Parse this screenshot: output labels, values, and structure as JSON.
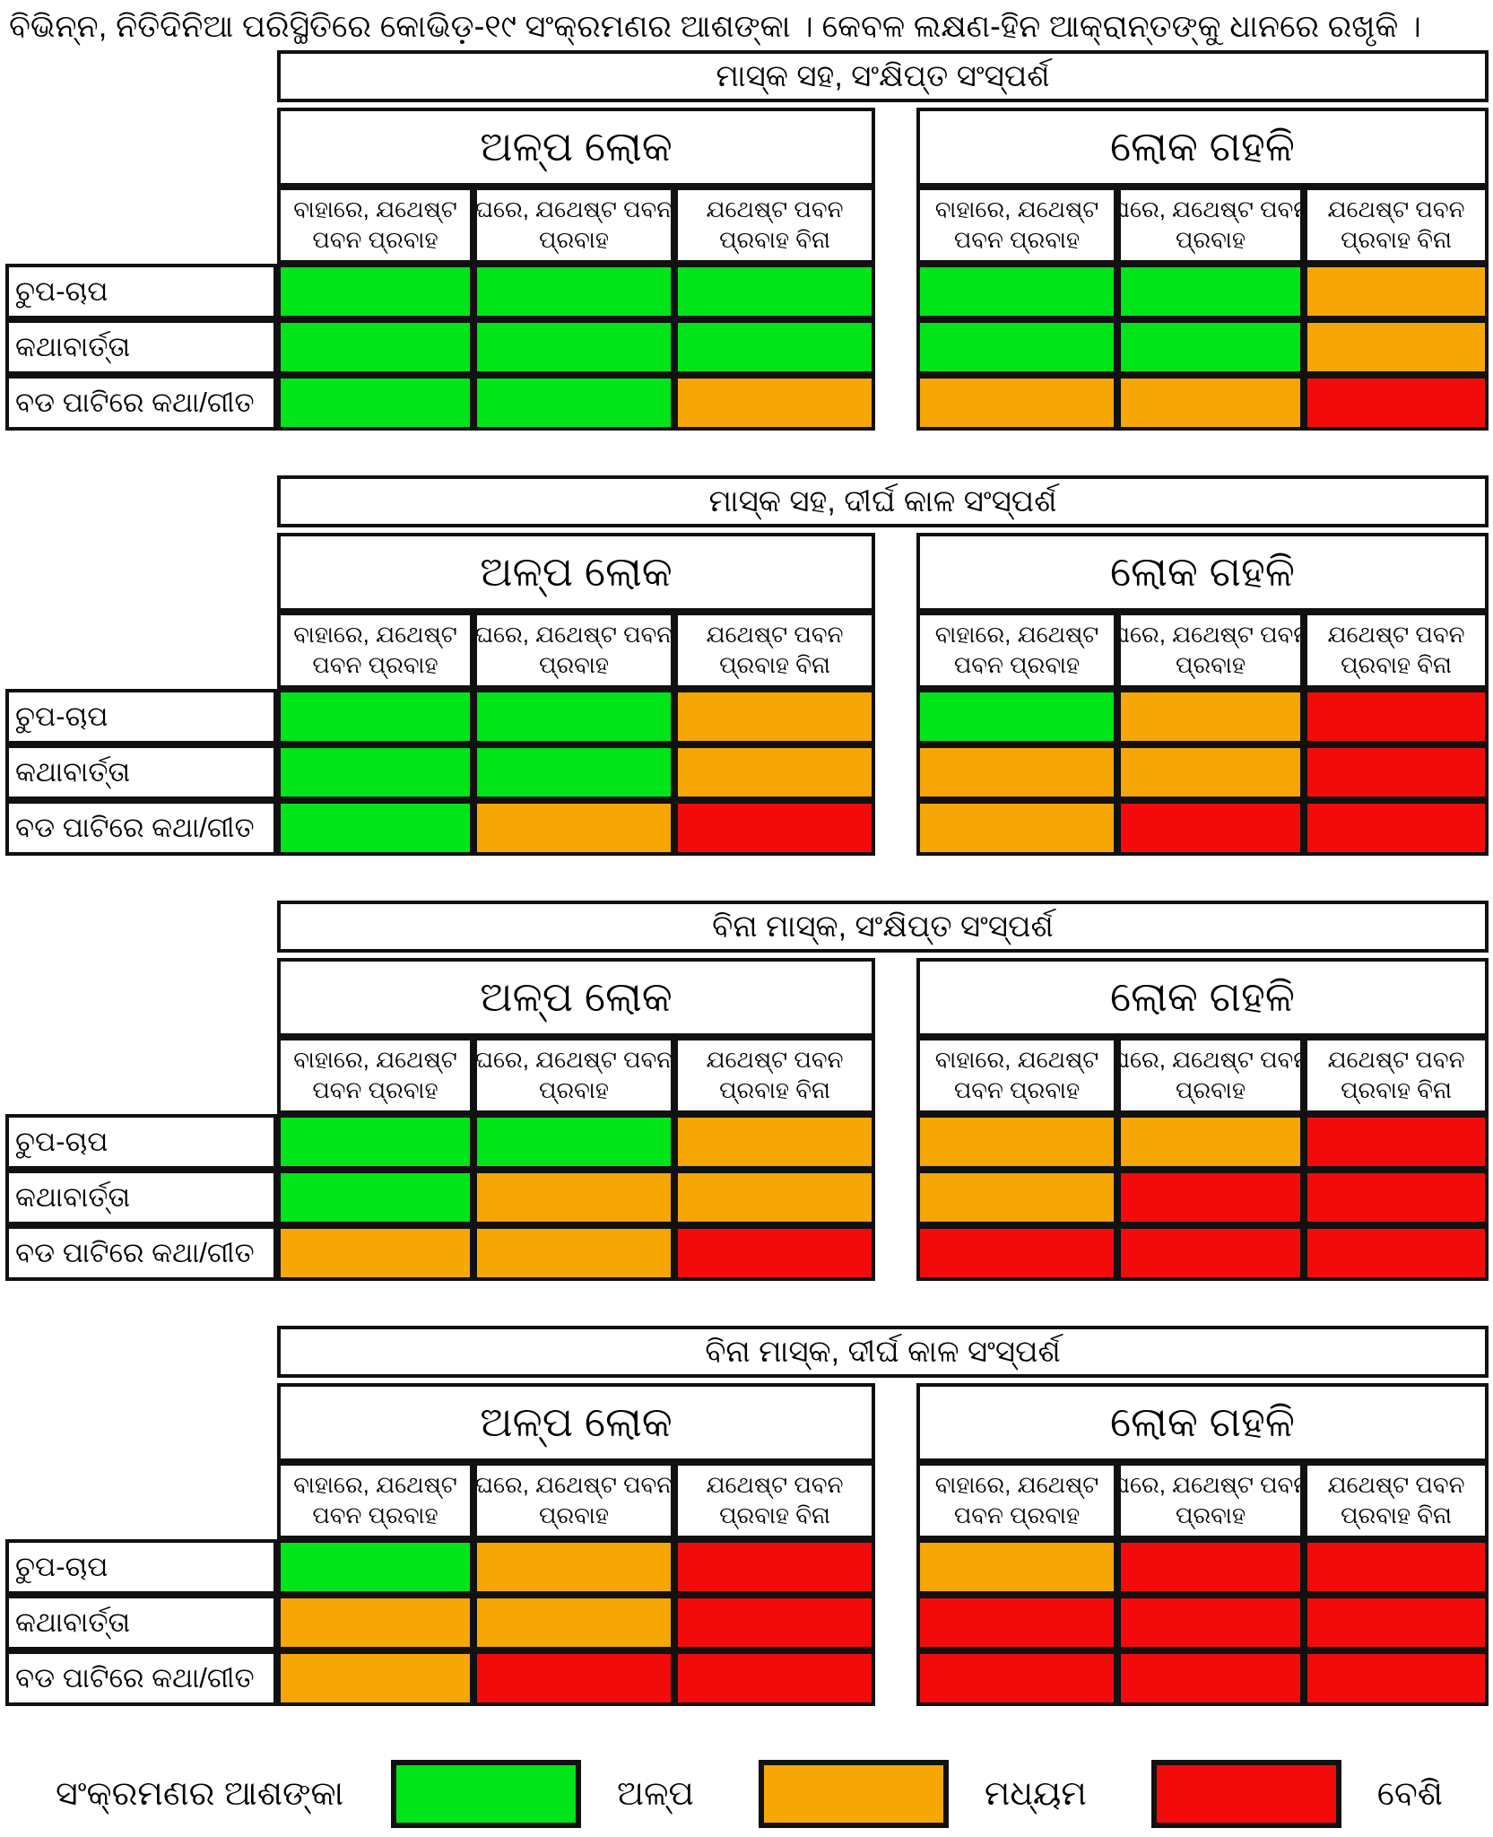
{
  "chart_data": {
    "type": "heatmap",
    "title": "ବିଭିନ୍ନ, ନିତିଦିନିଆ ପରିସ୍ଥିତିରେ କୋଭିଡ଼-୧୯ ସଂକ୍ରମଣର ଆଶଙ୍କା । କେବଳ ଲକ୍ଷଣ-ହିନ ଆକ୍ରାନ୍ତଙ୍କୁ ଧାନରେ ରଖୃକି ।",
    "colors": {
      "low": "#00e41a",
      "medium": "#f6a706",
      "high": "#f30b0b"
    },
    "group_columns": [
      "ଅଳ୍ପ ଲୋକ",
      "ଲୋକ ଗହଳି"
    ],
    "sub_columns": [
      [
        "ବାହାରେ, ଯଥେଷ୍ଟ",
        "ପବନ ପ୍ରବାହ"
      ],
      [
        "ଘରେ, ଯଥେଷ୍ଟ ପବନ",
        "ପ୍ରବାହ"
      ],
      [
        "ଯଥେଷ୍ଟ ପବନ",
        "ପ୍ରବାହ ବିନା"
      ]
    ],
    "row_labels": [
      "ଚୁପ-ଚାପ",
      "କଥାବାର୍ତ୍ତା",
      "ବଡ ପାଟିରେ କଥା/ଗୀତ"
    ],
    "panels": [
      {
        "title": "ମାସ୍କ ସହ, ସଂକ୍ଷିପ୍ତ ସଂସ୍ପର୍ଶ",
        "cells": [
          [
            "low",
            "low",
            "low",
            "low",
            "low",
            "medium"
          ],
          [
            "low",
            "low",
            "low",
            "low",
            "low",
            "medium"
          ],
          [
            "low",
            "low",
            "medium",
            "medium",
            "medium",
            "high"
          ]
        ]
      },
      {
        "title": "ମାସ୍କ ସହ, ଦୀର୍ଘ କାଳ ସଂସ୍ପର୍ଶ",
        "cells": [
          [
            "low",
            "low",
            "medium",
            "low",
            "medium",
            "high"
          ],
          [
            "low",
            "low",
            "medium",
            "medium",
            "medium",
            "high"
          ],
          [
            "low",
            "medium",
            "high",
            "medium",
            "high",
            "high"
          ]
        ]
      },
      {
        "title": "ବିନା ମାସ୍କ, ସଂକ୍ଷିପ୍ତ ସଂସ୍ପର୍ଶ",
        "cells": [
          [
            "low",
            "low",
            "medium",
            "medium",
            "medium",
            "high"
          ],
          [
            "low",
            "medium",
            "medium",
            "medium",
            "high",
            "high"
          ],
          [
            "medium",
            "medium",
            "high",
            "high",
            "high",
            "high"
          ]
        ]
      },
      {
        "title": "ବିନା ମାସ୍କ, ଦୀର୍ଘ କାଳ ସଂସ୍ପର୍ଶ",
        "cells": [
          [
            "low",
            "medium",
            "high",
            "medium",
            "high",
            "high"
          ],
          [
            "medium",
            "medium",
            "high",
            "high",
            "high",
            "high"
          ],
          [
            "medium",
            "high",
            "high",
            "high",
            "high",
            "high"
          ]
        ]
      }
    ],
    "legend_title": "ସଂକ୍ରମଣର ଆଶଙ୍କା",
    "legend": [
      {
        "level": "low",
        "label": "ଅଳ୍ପ"
      },
      {
        "level": "medium",
        "label": "ମଧ୍ୟମ"
      },
      {
        "level": "high",
        "label": "ବେଶି"
      }
    ]
  }
}
